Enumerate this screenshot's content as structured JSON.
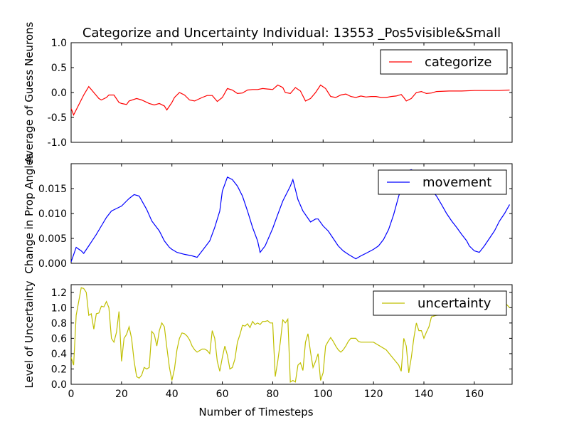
{
  "title": "Categorize and Uncertainty Individual: 13553 _Pos5visible&Small",
  "chart_data": [
    {
      "type": "line",
      "ylabel": "Average of Guess Neurons",
      "xlim": [
        0,
        175
      ],
      "ylim": [
        -1.0,
        1.0
      ],
      "yticks": [
        "-1.0",
        "-0.5",
        "0.0",
        "0.5",
        "1.0"
      ],
      "legend_position": "top-right",
      "series": [
        {
          "name": "categorize",
          "color": "#ff0000",
          "x": [
            0,
            1,
            3,
            5,
            7,
            9,
            11,
            12,
            14,
            15,
            17,
            19,
            20,
            22,
            23,
            26,
            28,
            31,
            33,
            35,
            37,
            38,
            40,
            41,
            43,
            45,
            47,
            49,
            52,
            54,
            56,
            58,
            60,
            62,
            64,
            66,
            68,
            70,
            72,
            74,
            76,
            78,
            80,
            82,
            84,
            85,
            87,
            89,
            91,
            93,
            95,
            97,
            99,
            101,
            103,
            105,
            107,
            109,
            111,
            113,
            115,
            117,
            119,
            121,
            123,
            125,
            127,
            129,
            131,
            132,
            133,
            135,
            137,
            139,
            141,
            143,
            145,
            150,
            155,
            160,
            165,
            170,
            174
          ],
          "y": [
            -0.32,
            -0.45,
            -0.25,
            -0.05,
            0.12,
            0.0,
            -0.12,
            -0.15,
            -0.1,
            -0.05,
            -0.05,
            -0.2,
            -0.22,
            -0.24,
            -0.17,
            -0.12,
            -0.15,
            -0.22,
            -0.25,
            -0.22,
            -0.27,
            -0.35,
            -0.2,
            -0.1,
            0.0,
            -0.05,
            -0.15,
            -0.17,
            -0.1,
            -0.06,
            -0.06,
            -0.18,
            -0.1,
            0.08,
            0.05,
            -0.02,
            -0.01,
            0.05,
            0.06,
            0.06,
            0.08,
            0.07,
            0.06,
            0.15,
            0.1,
            0.0,
            -0.02,
            0.1,
            0.03,
            -0.17,
            -0.12,
            0.0,
            0.15,
            0.08,
            -0.08,
            -0.1,
            -0.05,
            -0.03,
            -0.08,
            -0.1,
            -0.07,
            -0.09,
            -0.08,
            -0.08,
            -0.1,
            -0.1,
            -0.08,
            -0.07,
            -0.04,
            -0.1,
            -0.17,
            -0.12,
            0.0,
            0.02,
            -0.02,
            -0.01,
            0.02,
            0.03,
            0.03,
            0.04,
            0.04,
            0.04,
            0.05
          ]
        }
      ]
    },
    {
      "type": "line",
      "ylabel": "Change in Prop Angles",
      "xlim": [
        0,
        175
      ],
      "ylim": [
        0.0,
        0.02
      ],
      "yticks": [
        "0.000",
        "0.005",
        "0.010",
        "0.015"
      ],
      "legend_position": "top-right",
      "series": [
        {
          "name": "movement",
          "color": "#0000ff",
          "x": [
            0,
            2,
            4,
            5,
            7,
            10,
            12,
            14,
            16,
            18,
            20,
            22,
            23,
            25,
            27,
            30,
            32,
            35,
            37,
            39,
            40,
            42,
            45,
            48,
            50,
            52,
            55,
            57,
            59,
            60,
            62,
            64,
            66,
            68,
            70,
            72,
            74,
            75,
            77,
            80,
            82,
            84,
            86,
            87,
            88,
            90,
            92,
            95,
            97,
            98,
            100,
            102,
            104,
            106,
            108,
            110,
            112,
            113,
            115,
            117,
            120,
            122,
            124,
            126,
            128,
            130,
            132,
            133,
            135,
            137,
            139,
            141,
            143,
            145,
            147,
            149,
            151,
            153,
            155,
            157,
            158,
            160,
            162,
            164,
            166,
            168,
            170,
            172,
            174
          ],
          "y": [
            0.0003,
            0.0032,
            0.0025,
            0.002,
            0.0035,
            0.0058,
            0.0075,
            0.0092,
            0.0105,
            0.011,
            0.0115,
            0.0125,
            0.013,
            0.0138,
            0.0135,
            0.0108,
            0.0085,
            0.0065,
            0.0045,
            0.0032,
            0.0028,
            0.0022,
            0.0018,
            0.0015,
            0.0012,
            0.0025,
            0.0045,
            0.0072,
            0.0105,
            0.0145,
            0.0173,
            0.0168,
            0.0155,
            0.0135,
            0.0105,
            0.0072,
            0.0045,
            0.0022,
            0.0035,
            0.007,
            0.0098,
            0.0125,
            0.0145,
            0.0155,
            0.0168,
            0.0128,
            0.0105,
            0.0083,
            0.0089,
            0.0089,
            0.0075,
            0.0065,
            0.005,
            0.0035,
            0.0025,
            0.0018,
            0.0012,
            0.0009,
            0.0015,
            0.002,
            0.0028,
            0.0035,
            0.0048,
            0.0068,
            0.0098,
            0.0135,
            0.0165,
            0.0185,
            0.0188,
            0.0183,
            0.0175,
            0.0158,
            0.0148,
            0.0135,
            0.0118,
            0.01,
            0.0085,
            0.0072,
            0.0058,
            0.0045,
            0.0035,
            0.0025,
            0.0022,
            0.0035,
            0.005,
            0.0065,
            0.0085,
            0.01,
            0.0118
          ]
        }
      ]
    },
    {
      "type": "line",
      "ylabel": "Level of Uncertainty",
      "xlabel": "Number of Timesteps",
      "xlim": [
        0,
        175
      ],
      "ylim": [
        0.0,
        1.3
      ],
      "xticks": [
        "0",
        "20",
        "40",
        "60",
        "80",
        "100",
        "120",
        "140",
        "160"
      ],
      "yticks": [
        "0.0",
        "0.2",
        "0.4",
        "0.6",
        "0.8",
        "1.0",
        "1.2"
      ],
      "legend_position": "top-right",
      "series": [
        {
          "name": "uncertainty",
          "color": "#bfbf00",
          "x": [
            0,
            1,
            2,
            4,
            5,
            6,
            7,
            8,
            9,
            10,
            11,
            12,
            13,
            14,
            15,
            16,
            17,
            18,
            19,
            20,
            21,
            22,
            23,
            24,
            25,
            26,
            27,
            28,
            29,
            30,
            31,
            32,
            33,
            34,
            35,
            36,
            37,
            38,
            39,
            40,
            41,
            42,
            43,
            44,
            45,
            46,
            47,
            48,
            49,
            50,
            51,
            52,
            53,
            54,
            55,
            56,
            57,
            58,
            59,
            60,
            61,
            62,
            63,
            64,
            65,
            66,
            67,
            68,
            69,
            70,
            71,
            72,
            73,
            74,
            75,
            76,
            77,
            78,
            79,
            80,
            81,
            82,
            83,
            84,
            85,
            86,
            87,
            88,
            89,
            90,
            91,
            92,
            93,
            94,
            95,
            96,
            97,
            98,
            99,
            100,
            101,
            102,
            103,
            104,
            105,
            106,
            107,
            108,
            109,
            110,
            111,
            112,
            113,
            114,
            115,
            120,
            125,
            130,
            131,
            132,
            133,
            134,
            135,
            136,
            137,
            138,
            139,
            140,
            141,
            142,
            143,
            145,
            150,
            155,
            160,
            165,
            170,
            172,
            174
          ],
          "y": [
            0.35,
            0.25,
            0.9,
            1.26,
            1.25,
            1.2,
            0.9,
            0.92,
            0.72,
            0.92,
            0.93,
            1.02,
            1.01,
            1.08,
            1.0,
            0.6,
            0.55,
            0.68,
            0.95,
            0.3,
            0.6,
            0.65,
            0.75,
            0.6,
            0.3,
            0.1,
            0.08,
            0.12,
            0.22,
            0.2,
            0.22,
            0.69,
            0.65,
            0.5,
            0.7,
            0.8,
            0.75,
            0.48,
            0.22,
            0.05,
            0.2,
            0.45,
            0.6,
            0.67,
            0.66,
            0.63,
            0.58,
            0.5,
            0.45,
            0.42,
            0.44,
            0.46,
            0.46,
            0.44,
            0.4,
            0.7,
            0.6,
            0.3,
            0.17,
            0.35,
            0.5,
            0.38,
            0.2,
            0.22,
            0.33,
            0.55,
            0.65,
            0.77,
            0.76,
            0.79,
            0.74,
            0.82,
            0.78,
            0.8,
            0.78,
            0.82,
            0.82,
            0.83,
            0.8,
            0.8,
            0.1,
            0.3,
            0.55,
            0.84,
            0.8,
            0.85,
            0.03,
            0.05,
            0.03,
            0.25,
            0.28,
            0.18,
            0.55,
            0.66,
            0.42,
            0.22,
            0.3,
            0.4,
            0.05,
            0.15,
            0.5,
            0.56,
            0.61,
            0.56,
            0.5,
            0.45,
            0.42,
            0.45,
            0.5,
            0.56,
            0.6,
            0.6,
            0.6,
            0.56,
            0.55,
            0.55,
            0.45,
            0.25,
            0.17,
            0.6,
            0.5,
            0.15,
            0.35,
            0.6,
            0.8,
            0.7,
            0.7,
            0.6,
            0.68,
            0.75,
            0.88,
            0.9,
            0.92,
            0.95,
            1.0,
            1.0,
            1.02,
            1.07,
            1.0
          ]
        }
      ]
    }
  ]
}
